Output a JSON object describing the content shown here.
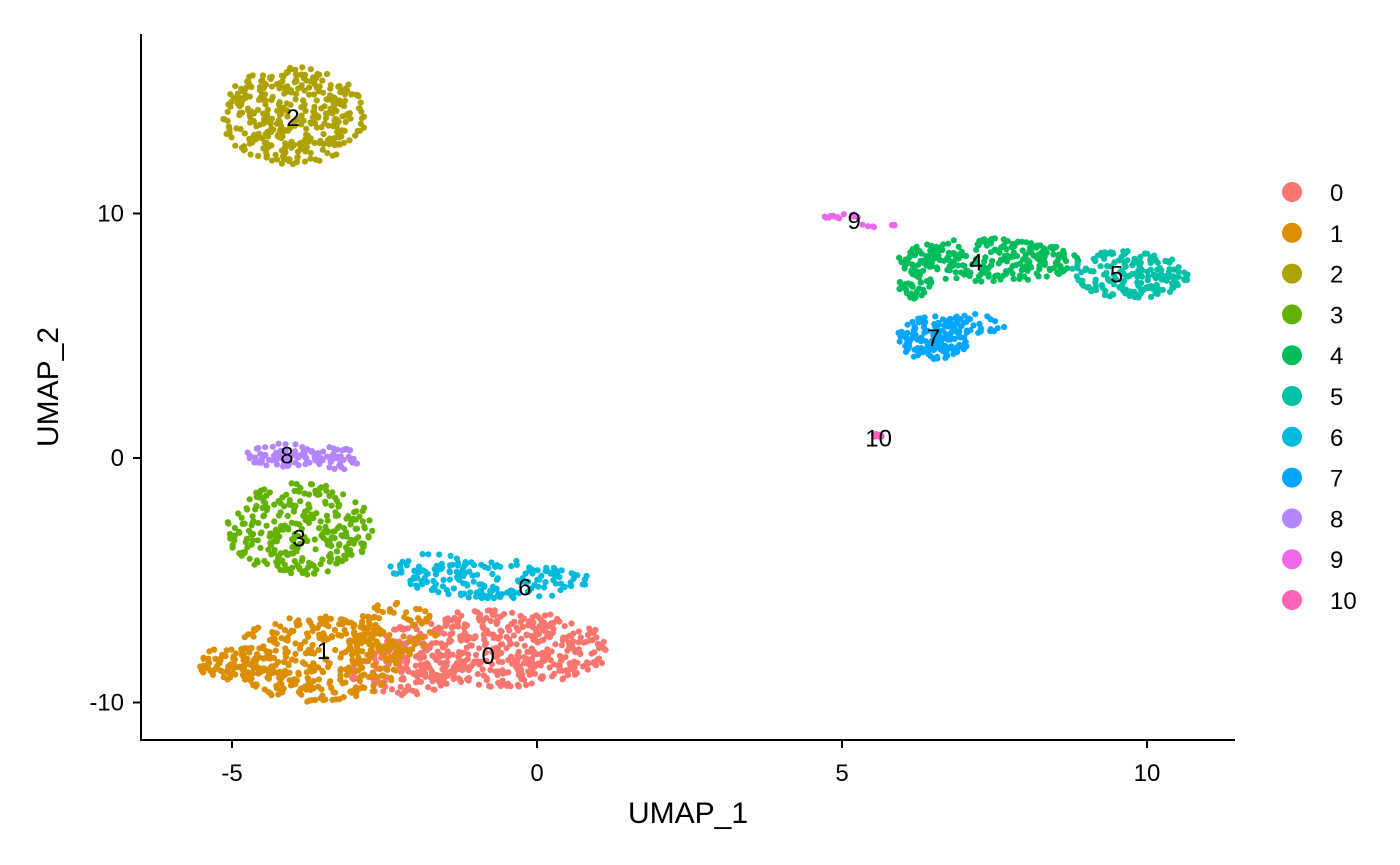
{
  "chart_data": {
    "type": "scatter",
    "title": "",
    "xlabel": "UMAP_1",
    "ylabel": "UMAP_2",
    "xlim": [
      -6.5,
      11.5
    ],
    "ylim": [
      -11.5,
      17.5
    ],
    "xticks": [
      -5,
      0,
      5,
      10
    ],
    "xtick_labels": [
      "-5",
      "0",
      "5",
      "10"
    ],
    "yticks": [
      -10,
      0,
      10
    ],
    "ytick_labels": [
      "-10",
      "0",
      "10"
    ],
    "grid": false,
    "legend_position": "right",
    "clusters": [
      {
        "id": "0",
        "label": "0",
        "color": "#F8766D",
        "label_pos": [
          -0.8,
          -8.1
        ],
        "regions": [
          {
            "cx": -0.7,
            "cy": -7.8,
            "rx": 1.9,
            "ry": 1.6,
            "n": 520
          },
          {
            "cx": -2.2,
            "cy": -8.7,
            "rx": 0.9,
            "ry": 1.0,
            "n": 100
          }
        ]
      },
      {
        "id": "1",
        "label": "1",
        "color": "#DB8E00",
        "label_pos": [
          -3.5,
          -7.9
        ],
        "regions": [
          {
            "cx": -3.6,
            "cy": -8.2,
            "rx": 1.4,
            "ry": 1.8,
            "n": 330
          },
          {
            "cx": -4.9,
            "cy": -8.4,
            "rx": 0.7,
            "ry": 0.7,
            "n": 80
          },
          {
            "cx": -2.4,
            "cy": -7.0,
            "rx": 0.8,
            "ry": 1.2,
            "n": 90
          }
        ]
      },
      {
        "id": "2",
        "label": "2",
        "color": "#AEA200",
        "label_pos": [
          -4.0,
          13.9
        ],
        "regions": [
          {
            "cx": -4.0,
            "cy": 14.0,
            "rx": 1.2,
            "ry": 2.0,
            "n": 380
          }
        ]
      },
      {
        "id": "3",
        "label": "3",
        "color": "#64B200",
        "label_pos": [
          -3.9,
          -3.3
        ],
        "regions": [
          {
            "cx": -3.9,
            "cy": -2.9,
            "rx": 1.2,
            "ry": 1.9,
            "n": 300
          }
        ]
      },
      {
        "id": "4",
        "label": "4",
        "color": "#00BD5C",
        "label_pos": [
          7.2,
          8.0
        ],
        "regions": [
          {
            "cx": 7.4,
            "cy": 8.1,
            "rx": 1.5,
            "ry": 0.9,
            "n": 250
          },
          {
            "cx": 6.2,
            "cy": 7.1,
            "rx": 0.3,
            "ry": 0.6,
            "n": 40
          }
        ]
      },
      {
        "id": "5",
        "label": "5",
        "color": "#00C1A7",
        "label_pos": [
          9.5,
          7.5
        ],
        "regions": [
          {
            "cx": 9.7,
            "cy": 7.5,
            "rx": 1.0,
            "ry": 1.0,
            "n": 190
          }
        ]
      },
      {
        "id": "6",
        "label": "6",
        "color": "#00BADE",
        "label_pos": [
          -0.2,
          -5.3
        ],
        "regions": [
          {
            "cx": -0.6,
            "cy": -5.0,
            "rx": 1.5,
            "ry": 0.8,
            "n": 150
          },
          {
            "cx": -1.8,
            "cy": -4.5,
            "rx": 0.7,
            "ry": 0.6,
            "n": 40
          }
        ]
      },
      {
        "id": "7",
        "label": "7",
        "color": "#00A6FF",
        "label_pos": [
          6.5,
          4.9
        ],
        "regions": [
          {
            "cx": 6.5,
            "cy": 4.9,
            "rx": 0.6,
            "ry": 0.9,
            "n": 140
          },
          {
            "cx": 7.2,
            "cy": 5.5,
            "rx": 0.5,
            "ry": 0.4,
            "n": 30
          }
        ]
      },
      {
        "id": "8",
        "label": "8",
        "color": "#B385FF",
        "label_pos": [
          -4.1,
          0.1
        ],
        "regions": [
          {
            "cx": -4.2,
            "cy": 0.1,
            "rx": 0.6,
            "ry": 0.5,
            "n": 70
          },
          {
            "cx": -3.3,
            "cy": 0.0,
            "rx": 0.4,
            "ry": 0.5,
            "n": 45
          }
        ]
      },
      {
        "id": "9",
        "label": "9",
        "color": "#EF67EB",
        "label_pos": [
          5.2,
          9.7
        ],
        "regions": [
          {
            "cx": 5.0,
            "cy": 9.9,
            "rx": 0.4,
            "ry": 0.1,
            "n": 14
          },
          {
            "cx": 5.6,
            "cy": 9.5,
            "rx": 0.3,
            "ry": 0.1,
            "n": 8
          }
        ]
      },
      {
        "id": "10",
        "label": "10",
        "color": "#FF63B6",
        "label_pos": [
          5.6,
          0.8
        ],
        "regions": [
          {
            "cx": 5.6,
            "cy": 0.95,
            "rx": 0.15,
            "ry": 0.08,
            "n": 8
          }
        ]
      }
    ]
  }
}
